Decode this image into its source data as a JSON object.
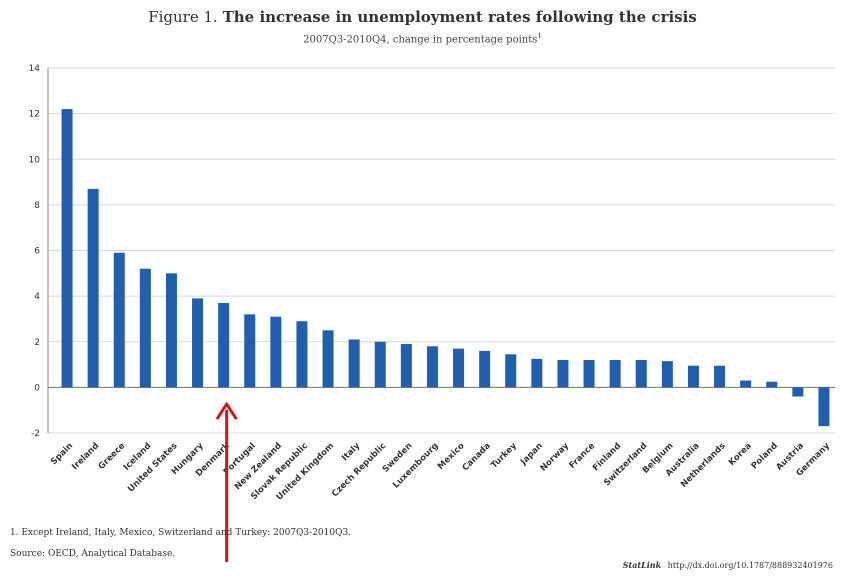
{
  "chart_data": {
    "type": "bar",
    "title_label": "Figure 1.",
    "title": "The increase in unemployment rates following the crisis",
    "subtitle": "2007Q3-2010Q4, change in percentage points",
    "subtitle_footnote_marker": "1",
    "xlabel": "",
    "ylabel": "",
    "ylim": [
      -2,
      14
    ],
    "yticks": [
      -2,
      0,
      2,
      4,
      6,
      8,
      10,
      12,
      14
    ],
    "grid": true,
    "bar_color": "#1f5fae",
    "categories": [
      "Spain",
      "Ireland",
      "Greece",
      "Iceland",
      "United States",
      "Hungary",
      "Denmark",
      "Portugal",
      "New Zealand",
      "Slovak Republic",
      "United Kingdom",
      "Italy",
      "Czech Republic",
      "Sweden",
      "Luxembourg",
      "Mexico",
      "Canada",
      "Turkey",
      "Japan",
      "Norway",
      "France",
      "Finland",
      "Switzerland",
      "Belgium",
      "Australia",
      "Netherlands",
      "Korea",
      "Poland",
      "Austria",
      "Germany"
    ],
    "values": [
      12.2,
      8.7,
      5.9,
      5.2,
      5.0,
      3.9,
      3.7,
      3.2,
      3.1,
      2.9,
      2.5,
      2.1,
      2.0,
      1.9,
      1.8,
      1.7,
      1.6,
      1.45,
      1.25,
      1.2,
      1.2,
      1.2,
      1.2,
      1.15,
      0.95,
      0.95,
      0.3,
      0.25,
      -0.4,
      -1.7
    ],
    "annotation": {
      "type": "arrow",
      "color": "#dd1111",
      "points_to": "Denmark"
    }
  },
  "footnotes": {
    "note_1": "1.  Except Ireland, Italy, Mexico, Switzerland and Turkey: 2007Q3-2010Q3.",
    "source": "Source:  OECD, Analytical Database."
  },
  "doi": {
    "brand": "StatLink",
    "url": "http://dx.doi.org/10.1787/888932401976"
  }
}
